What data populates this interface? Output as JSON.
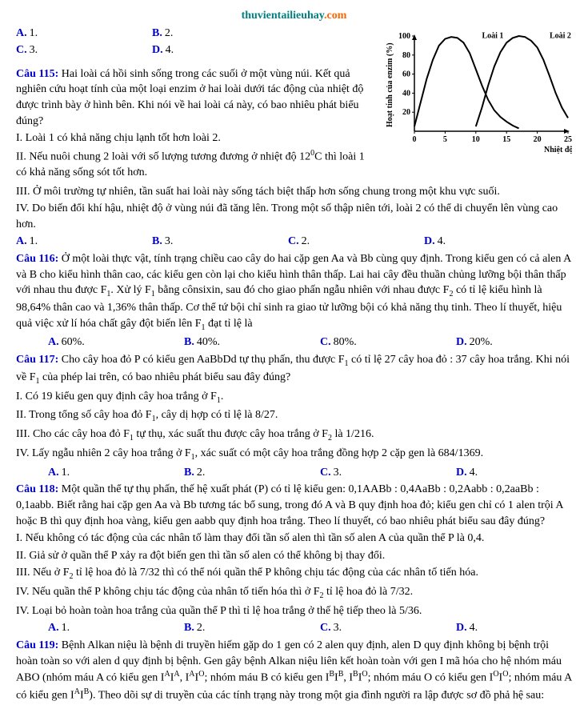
{
  "header": {
    "part1": "thuvientailieuhay",
    "part2": ".com"
  },
  "pre_answers": {
    "a": "A.",
    "a_val": "1.",
    "b": "B.",
    "b_val": "2.",
    "c": "C.",
    "c_val": "3.",
    "d": "D.",
    "d_val": "4."
  },
  "chart": {
    "type": "line",
    "xlabel": "Nhiệt độ (°C)",
    "ylabel": "Hoạt tính của enzim (%)",
    "xlim": [
      0,
      25
    ],
    "ylim": [
      0,
      100
    ],
    "xticks": [
      0,
      5,
      10,
      15,
      20,
      25
    ],
    "yticks": [
      20,
      40,
      60,
      80,
      100
    ],
    "series": [
      {
        "name": "Loài 1",
        "label_x": 11,
        "label_y": 98,
        "points": [
          [
            0,
            5
          ],
          [
            1,
            30
          ],
          [
            2,
            55
          ],
          [
            3,
            75
          ],
          [
            4,
            90
          ],
          [
            5,
            97
          ],
          [
            6,
            99
          ],
          [
            7,
            98
          ],
          [
            8,
            93
          ],
          [
            9,
            82
          ],
          [
            10,
            65
          ],
          [
            11,
            48
          ],
          [
            12,
            33
          ],
          [
            13,
            22
          ],
          [
            14,
            15
          ],
          [
            15,
            10
          ],
          [
            16,
            6
          ],
          [
            17,
            3
          ]
        ],
        "color": "#000000",
        "linewidth": 2
      },
      {
        "name": "Loài 2",
        "label_x": 22,
        "label_y": 98,
        "points": [
          [
            10,
            5
          ],
          [
            11,
            25
          ],
          [
            12,
            48
          ],
          [
            13,
            68
          ],
          [
            14,
            83
          ],
          [
            15,
            93
          ],
          [
            16,
            98
          ],
          [
            17,
            100
          ],
          [
            18,
            99
          ],
          [
            19,
            95
          ],
          [
            20,
            88
          ],
          [
            21,
            75
          ],
          [
            22,
            58
          ],
          [
            23,
            40
          ],
          [
            24,
            25
          ],
          [
            25,
            14
          ]
        ],
        "color": "#000000",
        "linewidth": 2
      }
    ],
    "axis_color": "#000000",
    "background": "#ffffff",
    "label_fontsize": 10
  },
  "q115": {
    "label": "Câu 115:",
    "text": " Hai loài cá hồi sinh sống trong các suối ở một vùng núi. Kết quả nghiên cứu hoạt tính của một loại enzim ở hai loài dưới tác động của nhiệt độ được trình bày ở hình bên. Khi nói về hai loài cá này, có bao nhiêu phát biểu đúng?",
    "i": "I. Loài 1 có khả năng chịu lạnh tốt hơn loài 2.",
    "ii_a": "II. Nếu nuôi chung 2 loài với số lượng tương đương ở nhiệt độ 12",
    "ii_b": "C thì loài 1 có khả năng sống sót tốt hơn.",
    "iii": "III. Ở môi trường tự nhiên, tần suất hai loài này sống tách biệt thấp hơn sống chung trong một khu vực suối.",
    "iv": "IV. Do biến đổi khí hậu, nhiệt độ ở vùng núi đã tăng lên. Trong một số thập niên tới, loài 2 có thể di chuyển lên vùng cao hơn.",
    "ans": {
      "a": "A.",
      "av": "1.",
      "b": "B.",
      "bv": "3.",
      "c": "C.",
      "cv": "2.",
      "d": "D.",
      "dv": "4."
    }
  },
  "q116": {
    "label": "Câu 116:",
    "text_a": " Ở một loài thực vật, tính trạng chiều cao cây do hai cặp gen Aa và Bb cùng quy định. Trong kiểu gen có cả alen A và B cho kiểu hình thân cao, các kiểu gen còn lại cho kiểu hình thân thấp. Lai hai cây đều thuần chủng lưỡng bội thân thấp với nhau thu được F",
    "text_b": ". Xử lý F",
    "text_c": " bằng cônsixin, sau đó cho giao phấn ngẫu nhiên với nhau được F",
    "text_d": " có tỉ lệ kiểu hình là 98,64% thân cao và 1,36% thân thấp. Cơ thể tứ bội chỉ sinh ra giao tử lưỡng bội có khả năng thụ tinh. Theo lí thuyết, hiệu quả việc xử lí hóa chất gây đột biến lên F",
    "text_e": " đạt tỉ lệ là",
    "ans": {
      "a": "A.",
      "av": "60%.",
      "b": "B.",
      "bv": "40%.",
      "c": "C.",
      "cv": "80%.",
      "d": "D.",
      "dv": "20%."
    }
  },
  "q117": {
    "label": "Câu 117:",
    "text_a": " Cho cây hoa đỏ P có kiểu gen AaBbDd tự thụ phấn, thu được F",
    "text_b": " có tỉ lệ 27 cây hoa đỏ : 37 cây hoa trắng. Khi nói về F",
    "text_c": " của phép lai trên, có bao nhiêu phát biểu sau đây đúng?",
    "i_a": "I. Có 19 kiểu gen quy định cây hoa trắng ở F",
    "i_b": ".",
    "ii_a": "II. Trong tổng số cây hoa đỏ F",
    "ii_b": ", cây dị hợp có tỉ lệ là 8/27.",
    "iii_a": "III. Cho các cây hoa đỏ F",
    "iii_b": " tự thụ, xác suất thu được cây hoa trắng ở F",
    "iii_c": " là 1/216.",
    "iv_a": "IV. Lấy ngẫu nhiên 2 cây hoa trắng ở F",
    "iv_b": ", xác suất có một cây hoa trắng đồng hợp 2 cặp gen là 684/1369.",
    "ans": {
      "a": "A.",
      "av": "1.",
      "b": "B.",
      "bv": "2.",
      "c": "C.",
      "cv": "3.",
      "d": "D.",
      "dv": "4."
    }
  },
  "q118": {
    "label": "Câu 118:",
    "text": " Một quần thể tự thụ phấn, thế hệ xuất phát (P) có tỉ lệ kiểu gen: 0,1AABb : 0,4AaBb : 0,2Aabb : 0,2aaBb : 0,1aabb. Biết rằng hai cặp gen Aa và Bb tương tác bổ sung, trong đó A và B quy định hoa đỏ; kiểu gen chỉ có 1 alen trội A hoặc B thì quy định hoa vàng, kiểu gen aabb quy định hoa trắng. Theo lí thuyết, có bao nhiêu phát biểu sau đây đúng?",
    "i": "I. Nếu không có tác động của các nhân tố làm thay đổi tần số alen thì tần số alen A của quần thể P là 0,4.",
    "ii": "II. Giả sử ở quần thể P xảy ra đột biến gen thì tần số alen có thể không bị thay đổi.",
    "iii_a": "III. Nếu ở F",
    "iii_b": " tỉ lệ hoa đỏ là 7/32 thì có thể nói quần thể P không chịu tác động của các nhân tố tiến hóa.",
    "iv_a": "IV. Nếu quần thể P không chịu tác động của nhân tố tiến hóa thì ở F",
    "iv_b": " tỉ lệ hoa đỏ là 7/32.",
    "v": "IV. Loại bỏ hoàn toàn hoa trắng của quần thể P thì tỉ lệ hoa trắng ở thế hệ tiếp theo là 5/36.",
    "ans": {
      "a": "A.",
      "av": "1.",
      "b": "B.",
      "bv": "2.",
      "c": "C.",
      "cv": "3.",
      "d": "D.",
      "dv": "4."
    }
  },
  "q119": {
    "label": "Câu 119:",
    "text_a": " Bệnh Alkan niệu là bệnh di truyền hiếm gặp do 1 gen có 2 alen quy định, alen D quy định không bị bệnh trội hoàn toàn so với alen d quy định bị bệnh. Gen gây bệnh Alkan niệu liên kết hoàn toàn với gen I mã hóa cho hệ nhóm máu ABO (nhóm máu A có kiểu gen I",
    "text_b": ", I",
    "text_c": "; nhóm máu B có kiểu gen I",
    "text_d": ", I",
    "text_e": "; nhóm máu O có kiểu gen I",
    "text_f": "; nhóm máu A có kiểu gen I",
    "text_g": "). Theo dõi sự di truyền của các tính trạng này trong một gia đình người ra lập được sơ đồ phả hệ sau:"
  }
}
